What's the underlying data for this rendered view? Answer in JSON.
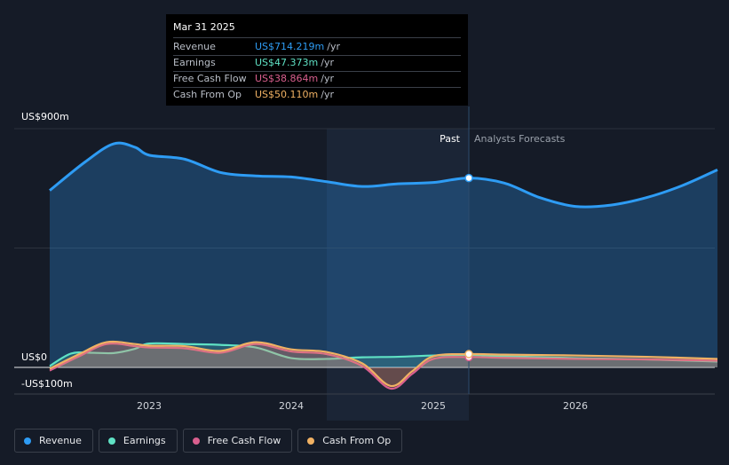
{
  "tooltip": {
    "date": "Mar 31 2025",
    "rows": [
      {
        "label": "Revenue",
        "value": "US$714.219m",
        "unit": "/yr",
        "color": "#2e9cf4"
      },
      {
        "label": "Earnings",
        "value": "US$47.373m",
        "unit": "/yr",
        "color": "#5fe1c4"
      },
      {
        "label": "Free Cash Flow",
        "value": "US$38.864m",
        "unit": "/yr",
        "color": "#d95f8e"
      },
      {
        "label": "Cash From Op",
        "value": "US$50.110m",
        "unit": "/yr",
        "color": "#f0b163"
      }
    ]
  },
  "labels": {
    "past": "Past",
    "forecast": "Analysts Forecasts"
  },
  "legend": [
    {
      "label": "Revenue",
      "color": "#2e9cf4"
    },
    {
      "label": "Earnings",
      "color": "#5fe1c4"
    },
    {
      "label": "Free Cash Flow",
      "color": "#d95f8e"
    },
    {
      "label": "Cash From Op",
      "color": "#f0b163"
    }
  ],
  "chart_data": {
    "type": "area",
    "title": "",
    "ylabel": "",
    "xlabel": "",
    "ylim": [
      -100,
      900
    ],
    "xlim": [
      2022.3,
      2027.0
    ],
    "y_ticks": [
      {
        "value": 900,
        "label": "US$900m"
      },
      {
        "value": 0,
        "label": "US$0"
      },
      {
        "value": -100,
        "label": "-US$100m"
      }
    ],
    "x_ticks": [
      {
        "value": 2023.0,
        "label": "2023"
      },
      {
        "value": 2024.0,
        "label": "2024"
      },
      {
        "value": 2025.0,
        "label": "2025"
      },
      {
        "value": 2026.0,
        "label": "2026"
      }
    ],
    "highlight_range": [
      2024.25,
      2025.25
    ],
    "present": 2025.25,
    "series": [
      {
        "name": "Revenue",
        "color": "#2e9cf4",
        "x": [
          2022.3,
          2022.55,
          2022.75,
          2022.9,
          2023.0,
          2023.25,
          2023.5,
          2023.75,
          2024.0,
          2024.25,
          2024.5,
          2024.75,
          2025.0,
          2025.25,
          2025.5,
          2025.75,
          2026.0,
          2026.25,
          2026.5,
          2026.75,
          2027.0
        ],
        "y": [
          667,
          775,
          843,
          830,
          800,
          785,
          735,
          722,
          718,
          700,
          682,
          692,
          697,
          714,
          695,
          640,
          607,
          612,
          640,
          685,
          745
        ]
      },
      {
        "name": "Earnings",
        "color": "#5fe1c4",
        "x": [
          2022.3,
          2022.45,
          2022.6,
          2022.75,
          2022.9,
          2023.0,
          2023.25,
          2023.5,
          2023.75,
          2024.0,
          2024.25,
          2024.5,
          2024.75,
          2025.0,
          2025.25,
          2025.5,
          2026.0,
          2026.5,
          2027.0
        ],
        "y": [
          5,
          52,
          55,
          54,
          70,
          90,
          88,
          85,
          75,
          35,
          32,
          38,
          40,
          45,
          47,
          42,
          35,
          30,
          22
        ]
      },
      {
        "name": "Free Cash Flow",
        "color": "#d95f8e",
        "x": [
          2022.3,
          2022.5,
          2022.7,
          2022.9,
          2023.0,
          2023.25,
          2023.5,
          2023.75,
          2024.0,
          2024.25,
          2024.5,
          2024.7,
          2024.85,
          2025.0,
          2025.25,
          2025.5,
          2026.0,
          2026.5,
          2027.0
        ],
        "y": [
          -12,
          40,
          88,
          80,
          75,
          72,
          55,
          88,
          60,
          50,
          5,
          -80,
          -25,
          32,
          39,
          36,
          32,
          30,
          25
        ]
      },
      {
        "name": "Cash From Op",
        "color": "#f0b163",
        "x": [
          2022.3,
          2022.5,
          2022.7,
          2022.9,
          2023.0,
          2023.25,
          2023.5,
          2023.75,
          2024.0,
          2024.25,
          2024.5,
          2024.7,
          2024.85,
          2025.0,
          2025.25,
          2025.5,
          2026.0,
          2026.5,
          2027.0
        ],
        "y": [
          -5,
          48,
          95,
          88,
          82,
          80,
          62,
          95,
          68,
          58,
          15,
          -70,
          -15,
          42,
          50,
          48,
          45,
          40,
          32
        ]
      }
    ]
  }
}
